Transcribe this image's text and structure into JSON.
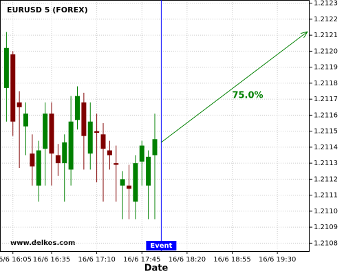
{
  "chart_data": {
    "type": "candlestick",
    "title": "EURUSD 5 (FOREX)",
    "watermark": "www.delkos.com",
    "x_label": "Date",
    "x": [
      "16/6 16:00",
      "16/6 16:05",
      "16/6 16:10",
      "16/6 16:15",
      "16/6 16:20",
      "16/6 16:25",
      "16/6 16:30",
      "16/6 16:35",
      "16/6 16:40",
      "16/6 16:45",
      "16/6 16:50",
      "16/6 16:55",
      "16/6 17:00",
      "16/6 17:05",
      "16/6 17:10",
      "16/6 17:15",
      "16/6 17:20",
      "16/6 17:25",
      "16/6 17:30",
      "16/6 17:35",
      "16/6 17:40",
      "16/6 17:45",
      "16/6 17:50",
      "16/6 17:55"
    ],
    "open": [
      1.21177,
      1.21198,
      1.21168,
      1.21153,
      1.21136,
      1.21116,
      1.21139,
      1.21161,
      1.21135,
      1.2113,
      1.21126,
      1.21157,
      1.21168,
      1.21136,
      1.2115,
      1.21148,
      1.21138,
      1.2113,
      1.21116,
      1.21116,
      1.21106,
      1.21131,
      1.21116,
      1.21135
    ],
    "high": [
      1.21212,
      1.212,
      1.21175,
      1.21168,
      1.21148,
      1.21144,
      1.21168,
      1.21168,
      1.21142,
      1.21148,
      1.21172,
      1.21178,
      1.21174,
      1.21168,
      1.21161,
      1.21155,
      1.21144,
      1.21141,
      1.21125,
      1.21129,
      1.21135,
      1.21144,
      1.21138,
      1.21161
    ],
    "low": [
      1.21156,
      1.21147,
      1.21127,
      1.21135,
      1.21116,
      1.21106,
      1.21116,
      1.21116,
      1.21122,
      1.21106,
      1.21116,
      1.21151,
      1.21126,
      1.21126,
      1.21118,
      1.21106,
      1.21126,
      1.21106,
      1.21095,
      1.21095,
      1.21095,
      1.21116,
      1.21095,
      1.21095
    ],
    "close": [
      1.21202,
      1.21156,
      1.21165,
      1.21161,
      1.21128,
      1.21138,
      1.21161,
      1.21136,
      1.2113,
      1.21143,
      1.21156,
      1.21172,
      1.21147,
      1.21156,
      1.21149,
      1.21139,
      1.21135,
      1.21129,
      1.2112,
      1.21114,
      1.2113,
      1.21141,
      1.21134,
      1.21145
    ],
    "up_color": "#008000",
    "down_color": "#800000",
    "xlim": [
      "16/6 15:55",
      "16/6 19:55"
    ],
    "xticks": [
      "16/6 16:05",
      "16/6 16:35",
      "16/6 17:10",
      "16/6 17:45",
      "16/6 18:20",
      "16/6 18:55",
      "16/6 19:30"
    ],
    "ylim": [
      1.21075,
      1.21232
    ],
    "yticks": [
      1.2108,
      1.2109,
      {
        "value": 1.211,
        "label": "1.2110"
      },
      1.2111,
      1.2112,
      1.2113,
      1.2114,
      1.2115,
      1.2116,
      1.2117,
      1.2118,
      1.2119,
      {
        "value": 1.212,
        "label": "1.2120"
      },
      1.2121,
      1.2122,
      1.2123
    ],
    "grid": true,
    "event": {
      "label": "Event",
      "x": "16/6 18:00",
      "color": "#0000ff"
    },
    "forecast": {
      "x": [
        "16/6 18:00",
        "16/6 19:53"
      ],
      "y": [
        1.21143,
        1.21212
      ],
      "label": "75.0%",
      "color": "#008000"
    }
  }
}
